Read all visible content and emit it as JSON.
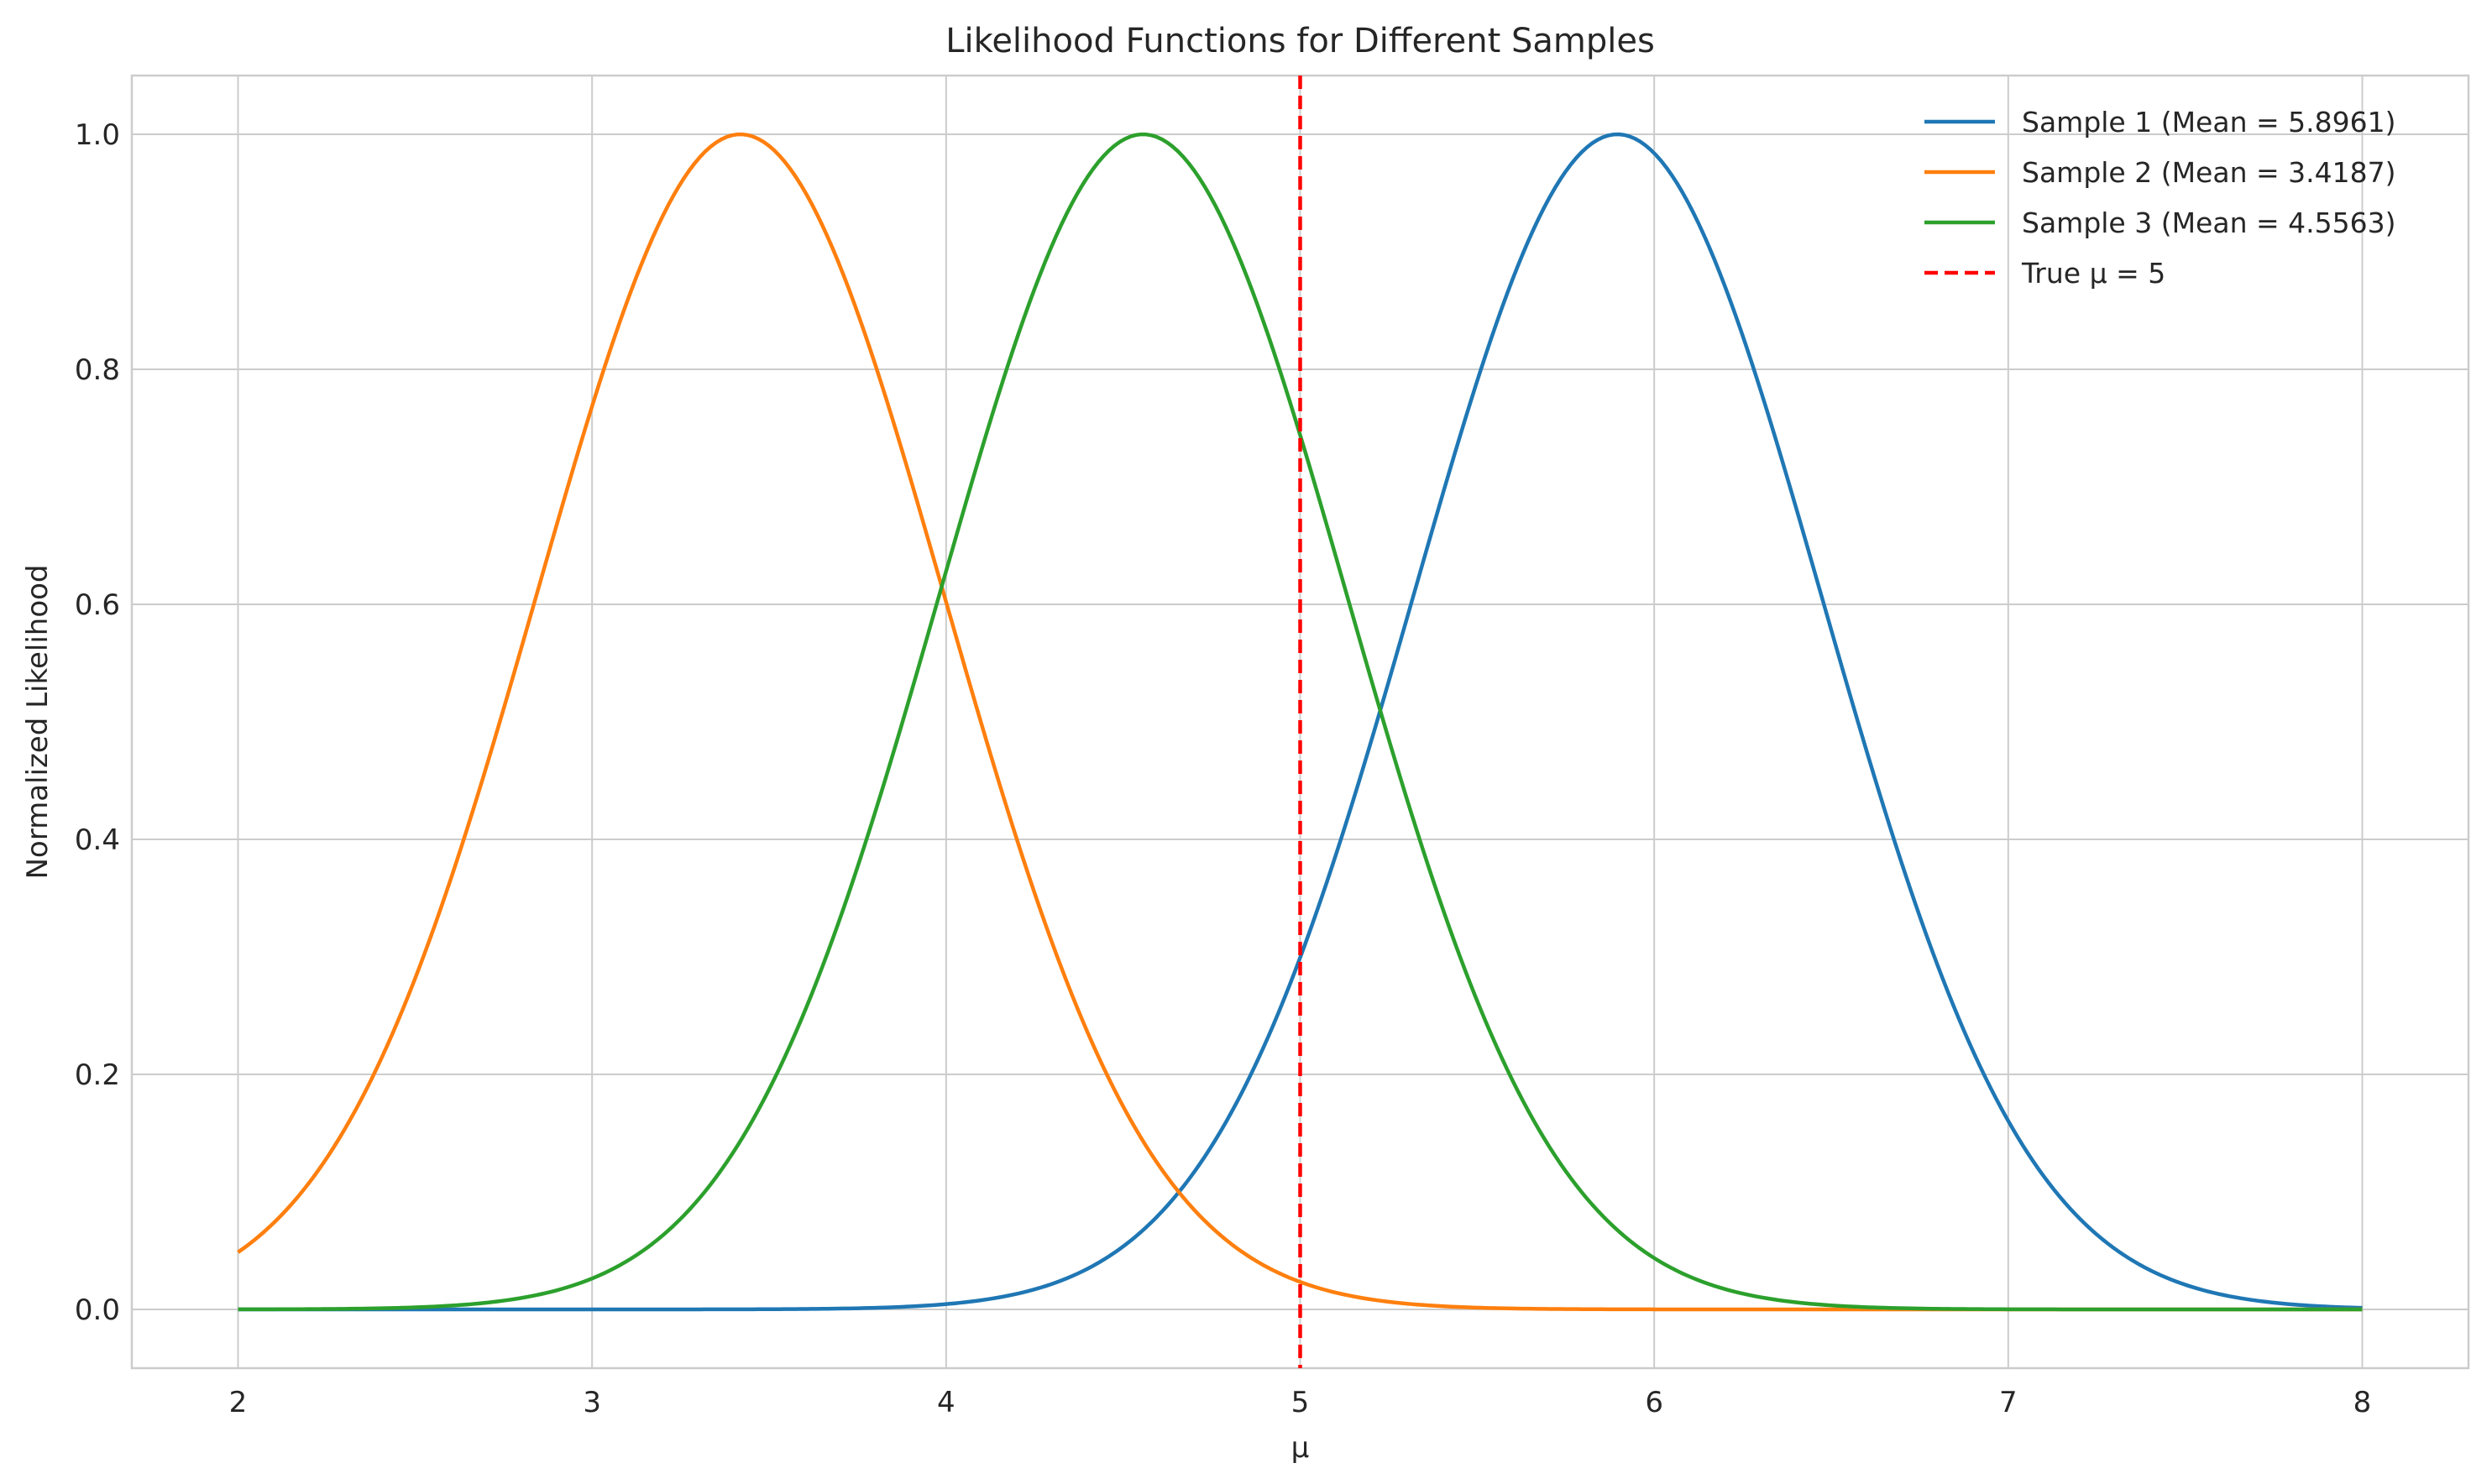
{
  "chart_data": {
    "type": "line",
    "title": "Likelihood Functions for Different Samples",
    "xlabel": "μ",
    "ylabel": "Normalized Likelihood",
    "xlim": [
      1.7,
      8.3
    ],
    "ylim": [
      -0.05,
      1.05
    ],
    "x_range": [
      2,
      8
    ],
    "grid": true,
    "legend_position": "top-right",
    "x_ticks": [
      "2",
      "3",
      "4",
      "5",
      "6",
      "7",
      "8"
    ],
    "x_tick_values": [
      2,
      3,
      4,
      5,
      6,
      7,
      8
    ],
    "y_ticks": [
      "0.0",
      "0.2",
      "0.4",
      "0.6",
      "0.8",
      "1.0"
    ],
    "y_tick_values": [
      0,
      0.2,
      0.4,
      0.6,
      0.8,
      1.0
    ],
    "series": [
      {
        "name": "Sample 1 (Mean = 5.8961)",
        "mean": 5.8961,
        "sigma": 0.577,
        "color": "#1f77b4"
      },
      {
        "name": "Sample 2 (Mean = 3.4187)",
        "mean": 3.4187,
        "sigma": 0.577,
        "color": "#ff7f0e"
      },
      {
        "name": "Sample 3 (Mean = 4.5563)",
        "mean": 4.5563,
        "sigma": 0.577,
        "color": "#2ca02c"
      }
    ],
    "reference_line": {
      "name": "True μ = 5",
      "x": 5,
      "color": "#ff0000",
      "style": "dashed"
    }
  }
}
